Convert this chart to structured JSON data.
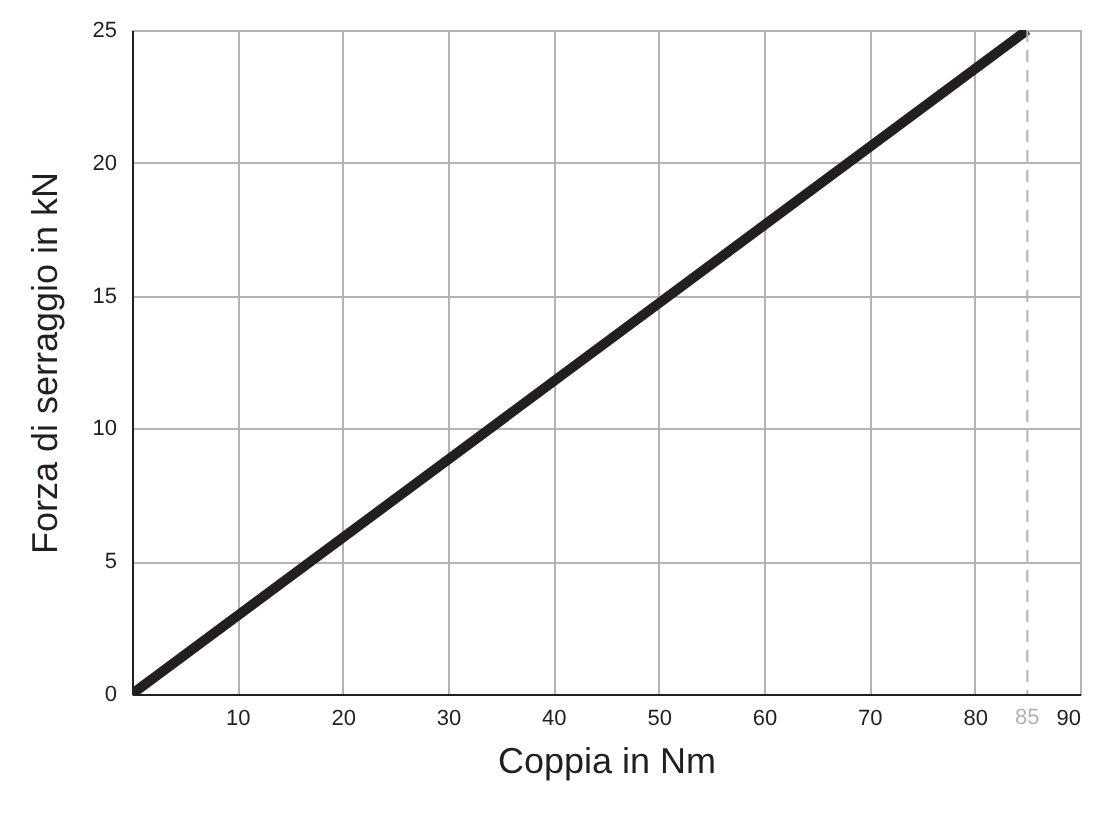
{
  "chart_data": {
    "type": "line",
    "xlabel": "Coppia in Nm",
    "ylabel": "Forza di serraggio in kN",
    "series": [
      {
        "color": "#231f20",
        "x": [
          0,
          85
        ],
        "values": [
          0,
          25
        ]
      }
    ],
    "xlim": [
      0,
      90
    ],
    "xticks": [
      10,
      20,
      30,
      40,
      50,
      60,
      70,
      80,
      90
    ],
    "ylim": [
      0,
      25
    ],
    "yticks": [
      0,
      5,
      10,
      15,
      20,
      25
    ],
    "grid": true,
    "marker": "none",
    "line_style": "solid",
    "ref_lines": [
      {
        "axis": "x",
        "value": 85,
        "label": "85",
        "color": "#b3b3b3",
        "line_style": "dashed"
      }
    ]
  }
}
